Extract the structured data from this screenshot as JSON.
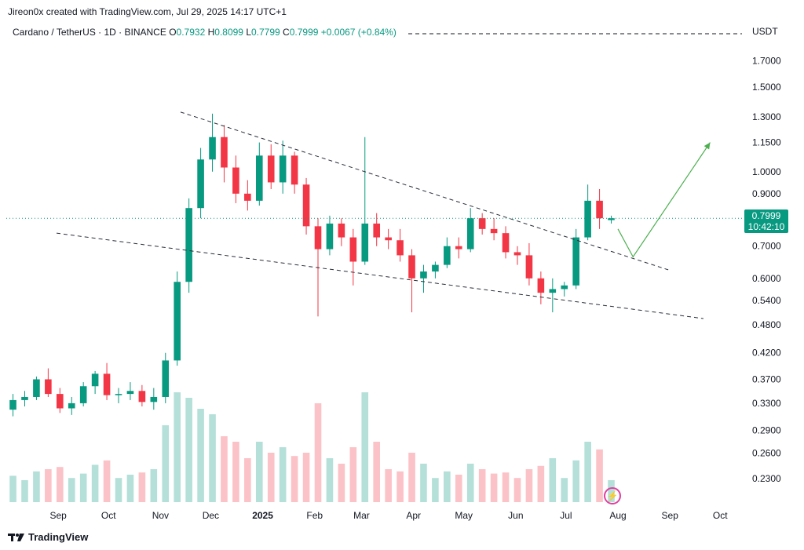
{
  "header": {
    "credit": "Jireon0x created with TradingView.com, Jul 29, 2025 14:17 UTC+1"
  },
  "legend": {
    "symbol": "Cardano / TetherUS · 1D · BINANCE",
    "o_label": "O",
    "o_value": "0.7932",
    "h_label": "H",
    "h_value": "0.8099",
    "l_label": "L",
    "l_value": "0.7799",
    "c_label": "C",
    "c_value": "0.7999",
    "change": "+0.0067 (+0.84%)"
  },
  "currency": "USDT",
  "last_price": {
    "price": "0.7999",
    "countdown": "10:42:10"
  },
  "footer": {
    "brand": "TradingView"
  },
  "colors": {
    "up": "#089981",
    "down": "#f23645",
    "projection": "#4caf50",
    "trendline": "#2a2e39",
    "marker": "#e040a0"
  },
  "icons": {
    "brand_logo": "tradingview-logo-icon",
    "marker": "lightning-icon"
  },
  "chart_data": {
    "type": "candlestick",
    "title": "Cardano / TetherUS · 1D · BINANCE",
    "y_scale": "log",
    "ylim": [
      0.215,
      1.85
    ],
    "y_ticks": [
      "1.7000",
      "1.5000",
      "1.3000",
      "1.1500",
      "1.0000",
      "0.9000",
      "0.7000",
      "0.6000",
      "0.5400",
      "0.4800",
      "0.4200",
      "0.3700",
      "0.3300",
      "0.2900",
      "0.2600",
      "0.2300"
    ],
    "x_ticks": [
      "Sep",
      "Oct",
      "Nov",
      "Dec",
      "2025",
      "Feb",
      "Mar",
      "Apr",
      "May",
      "Jun",
      "Jul",
      "Aug",
      "Sep",
      "Oct"
    ],
    "x_tick_dates": [
      "2024-09-01",
      "2024-10-01",
      "2024-11-01",
      "2024-12-01",
      "2025-01-01",
      "2025-02-01",
      "2025-03-01",
      "2025-04-01",
      "2025-05-01",
      "2025-06-01",
      "2025-07-01",
      "2025-08-01",
      "2025-09-01",
      "2025-10-01"
    ],
    "series": [
      {
        "date": "2024-08-05",
        "o": 0.32,
        "h": 0.345,
        "l": 0.31,
        "c": 0.335,
        "v": 0.24
      },
      {
        "date": "2024-08-12",
        "o": 0.335,
        "h": 0.35,
        "l": 0.325,
        "c": 0.34,
        "v": 0.2
      },
      {
        "date": "2024-08-19",
        "o": 0.34,
        "h": 0.375,
        "l": 0.335,
        "c": 0.37,
        "v": 0.28
      },
      {
        "date": "2024-08-26",
        "o": 0.37,
        "h": 0.39,
        "l": 0.34,
        "c": 0.345,
        "v": 0.3
      },
      {
        "date": "2024-09-02",
        "o": 0.345,
        "h": 0.355,
        "l": 0.315,
        "c": 0.322,
        "v": 0.32
      },
      {
        "date": "2024-09-09",
        "o": 0.322,
        "h": 0.34,
        "l": 0.312,
        "c": 0.33,
        "v": 0.22
      },
      {
        "date": "2024-09-16",
        "o": 0.33,
        "h": 0.365,
        "l": 0.325,
        "c": 0.358,
        "v": 0.26
      },
      {
        "date": "2024-09-23",
        "o": 0.358,
        "h": 0.385,
        "l": 0.345,
        "c": 0.38,
        "v": 0.34
      },
      {
        "date": "2024-09-30",
        "o": 0.38,
        "h": 0.4,
        "l": 0.335,
        "c": 0.343,
        "v": 0.38
      },
      {
        "date": "2024-10-07",
        "o": 0.343,
        "h": 0.355,
        "l": 0.33,
        "c": 0.345,
        "v": 0.22
      },
      {
        "date": "2024-10-14",
        "o": 0.345,
        "h": 0.365,
        "l": 0.335,
        "c": 0.35,
        "v": 0.25
      },
      {
        "date": "2024-10-21",
        "o": 0.35,
        "h": 0.36,
        "l": 0.325,
        "c": 0.332,
        "v": 0.27
      },
      {
        "date": "2024-10-28",
        "o": 0.332,
        "h": 0.355,
        "l": 0.32,
        "c": 0.34,
        "v": 0.3
      },
      {
        "date": "2024-11-04",
        "o": 0.34,
        "h": 0.42,
        "l": 0.33,
        "c": 0.405,
        "v": 0.7
      },
      {
        "date": "2024-11-11",
        "o": 0.405,
        "h": 0.62,
        "l": 0.395,
        "c": 0.59,
        "v": 1.0
      },
      {
        "date": "2024-11-18",
        "o": 0.59,
        "h": 0.88,
        "l": 0.56,
        "c": 0.84,
        "v": 0.95
      },
      {
        "date": "2024-11-25",
        "o": 0.84,
        "h": 1.12,
        "l": 0.8,
        "c": 1.06,
        "v": 0.85
      },
      {
        "date": "2024-12-02",
        "o": 1.06,
        "h": 1.32,
        "l": 1.0,
        "c": 1.18,
        "v": 0.8
      },
      {
        "date": "2024-12-09",
        "o": 1.18,
        "h": 1.25,
        "l": 0.95,
        "c": 1.02,
        "v": 0.6
      },
      {
        "date": "2024-12-16",
        "o": 1.02,
        "h": 1.08,
        "l": 0.86,
        "c": 0.9,
        "v": 0.55
      },
      {
        "date": "2024-12-23",
        "o": 0.9,
        "h": 0.96,
        "l": 0.83,
        "c": 0.87,
        "v": 0.4
      },
      {
        "date": "2024-12-30",
        "o": 0.87,
        "h": 1.15,
        "l": 0.85,
        "c": 1.08,
        "v": 0.55
      },
      {
        "date": "2025-01-06",
        "o": 1.08,
        "h": 1.14,
        "l": 0.92,
        "c": 0.95,
        "v": 0.45
      },
      {
        "date": "2025-01-13",
        "o": 0.95,
        "h": 1.16,
        "l": 0.9,
        "c": 1.08,
        "v": 0.5
      },
      {
        "date": "2025-01-20",
        "o": 1.08,
        "h": 1.1,
        "l": 0.9,
        "c": 0.94,
        "v": 0.42
      },
      {
        "date": "2025-01-27",
        "o": 0.94,
        "h": 0.97,
        "l": 0.74,
        "c": 0.77,
        "v": 0.45
      },
      {
        "date": "2025-02-03",
        "o": 0.77,
        "h": 0.8,
        "l": 0.5,
        "c": 0.69,
        "v": 0.9
      },
      {
        "date": "2025-02-10",
        "o": 0.69,
        "h": 0.81,
        "l": 0.67,
        "c": 0.78,
        "v": 0.4
      },
      {
        "date": "2025-02-17",
        "o": 0.78,
        "h": 0.8,
        "l": 0.7,
        "c": 0.73,
        "v": 0.35
      },
      {
        "date": "2025-02-24",
        "o": 0.73,
        "h": 0.76,
        "l": 0.58,
        "c": 0.65,
        "v": 0.5
      },
      {
        "date": "2025-03-03",
        "o": 0.65,
        "h": 1.18,
        "l": 0.64,
        "c": 0.78,
        "v": 1.0
      },
      {
        "date": "2025-03-10",
        "o": 0.78,
        "h": 0.82,
        "l": 0.7,
        "c": 0.73,
        "v": 0.55
      },
      {
        "date": "2025-03-17",
        "o": 0.73,
        "h": 0.76,
        "l": 0.69,
        "c": 0.72,
        "v": 0.3
      },
      {
        "date": "2025-03-24",
        "o": 0.72,
        "h": 0.76,
        "l": 0.65,
        "c": 0.67,
        "v": 0.28
      },
      {
        "date": "2025-03-31",
        "o": 0.67,
        "h": 0.69,
        "l": 0.51,
        "c": 0.6,
        "v": 0.45
      },
      {
        "date": "2025-04-07",
        "o": 0.6,
        "h": 0.64,
        "l": 0.56,
        "c": 0.62,
        "v": 0.35
      },
      {
        "date": "2025-04-14",
        "o": 0.62,
        "h": 0.65,
        "l": 0.6,
        "c": 0.64,
        "v": 0.22
      },
      {
        "date": "2025-04-21",
        "o": 0.64,
        "h": 0.73,
        "l": 0.63,
        "c": 0.7,
        "v": 0.28
      },
      {
        "date": "2025-04-28",
        "o": 0.7,
        "h": 0.73,
        "l": 0.66,
        "c": 0.69,
        "v": 0.25
      },
      {
        "date": "2025-05-05",
        "o": 0.69,
        "h": 0.84,
        "l": 0.68,
        "c": 0.8,
        "v": 0.35
      },
      {
        "date": "2025-05-12",
        "o": 0.8,
        "h": 0.82,
        "l": 0.74,
        "c": 0.76,
        "v": 0.3
      },
      {
        "date": "2025-05-19",
        "o": 0.76,
        "h": 0.8,
        "l": 0.72,
        "c": 0.745,
        "v": 0.26
      },
      {
        "date": "2025-05-26",
        "o": 0.745,
        "h": 0.77,
        "l": 0.66,
        "c": 0.68,
        "v": 0.27
      },
      {
        "date": "2025-06-02",
        "o": 0.68,
        "h": 0.7,
        "l": 0.64,
        "c": 0.67,
        "v": 0.22
      },
      {
        "date": "2025-06-09",
        "o": 0.67,
        "h": 0.71,
        "l": 0.58,
        "c": 0.6,
        "v": 0.3
      },
      {
        "date": "2025-06-16",
        "o": 0.6,
        "h": 0.62,
        "l": 0.53,
        "c": 0.56,
        "v": 0.33
      },
      {
        "date": "2025-06-23",
        "o": 0.56,
        "h": 0.6,
        "l": 0.51,
        "c": 0.57,
        "v": 0.4
      },
      {
        "date": "2025-06-30",
        "o": 0.57,
        "h": 0.59,
        "l": 0.55,
        "c": 0.58,
        "v": 0.22
      },
      {
        "date": "2025-07-07",
        "o": 0.58,
        "h": 0.76,
        "l": 0.57,
        "c": 0.73,
        "v": 0.38
      },
      {
        "date": "2025-07-14",
        "o": 0.73,
        "h": 0.94,
        "l": 0.72,
        "c": 0.87,
        "v": 0.55
      },
      {
        "date": "2025-07-21",
        "o": 0.87,
        "h": 0.92,
        "l": 0.76,
        "c": 0.8,
        "v": 0.48
      },
      {
        "date": "2025-07-28",
        "o": 0.793,
        "h": 0.81,
        "l": 0.78,
        "c": 0.8,
        "v": 0.2
      }
    ],
    "trendlines": [
      {
        "style": "dashed",
        "from": {
          "date": "2024-11-13",
          "price": 1.33
        },
        "to": {
          "date": "2025-08-31",
          "price": 0.625
        }
      },
      {
        "style": "dashed",
        "from": {
          "date": "2024-08-31",
          "price": 0.745
        },
        "to": {
          "date": "2025-09-21",
          "price": 0.495
        }
      }
    ],
    "projection": [
      {
        "date": "2025-08-01",
        "price": 0.76
      },
      {
        "date": "2025-08-10",
        "price": 0.665
      },
      {
        "date": "2025-09-25",
        "price": 1.15
      }
    ],
    "last_price_line": 0.7999,
    "grid": false,
    "legend_placement": "top-left"
  }
}
